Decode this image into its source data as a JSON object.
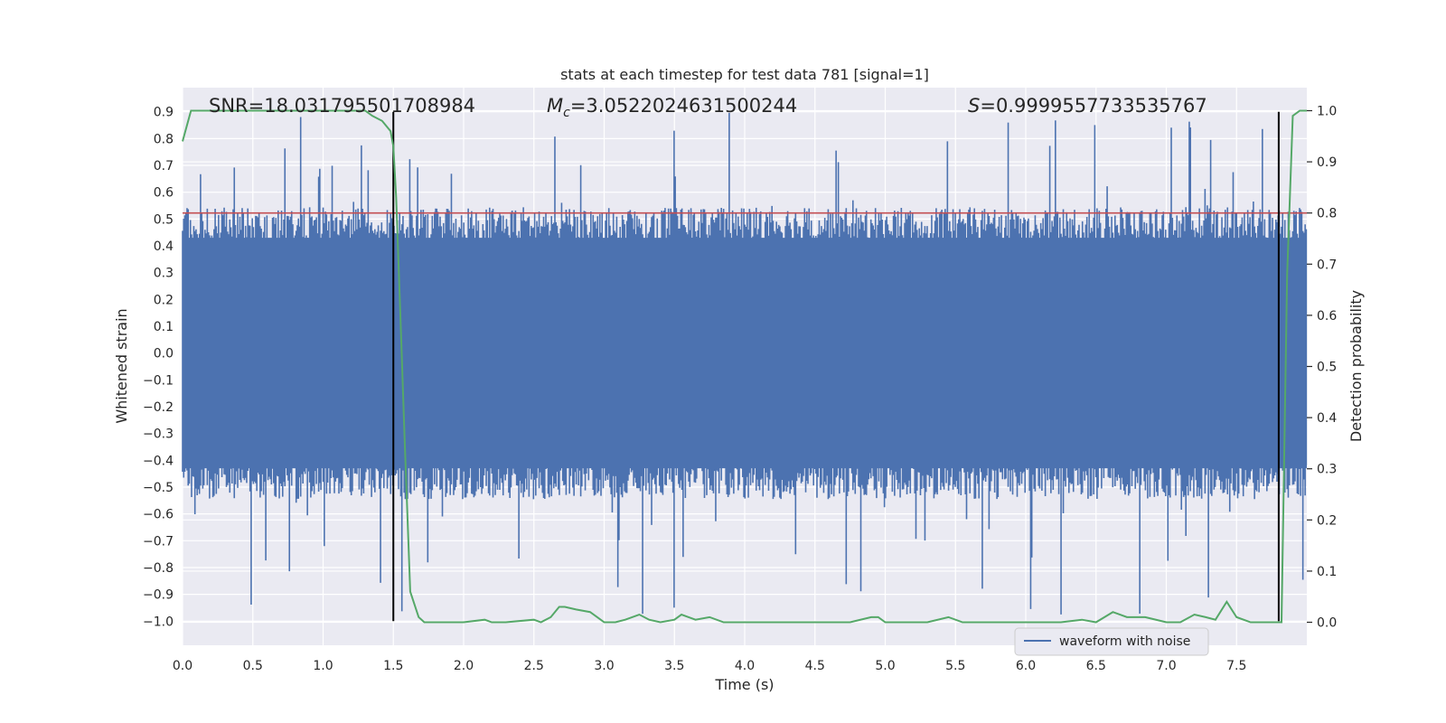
{
  "chart_data": {
    "type": "line",
    "title": "stats at each timestep for test data 781 [signal=1]",
    "xlabel": "Time (s)",
    "ylabel": "Whitened strain",
    "y2label": "Detection probability",
    "xlim": [
      0.0,
      8.0
    ],
    "ylim": [
      -1.09,
      0.99
    ],
    "y2lim": [
      -0.045,
      1.045
    ],
    "x_ticks": [
      0.0,
      0.5,
      1.0,
      1.5,
      2.0,
      2.5,
      3.0,
      3.5,
      4.0,
      4.5,
      5.0,
      5.5,
      6.0,
      6.5,
      7.0,
      7.5
    ],
    "x_tick_labels": [
      "0.0",
      "0.5",
      "1.0",
      "1.5",
      "2.0",
      "2.5",
      "3.0",
      "3.5",
      "4.0",
      "4.5",
      "5.0",
      "5.5",
      "6.0",
      "6.5",
      "7.0",
      "7.5"
    ],
    "y_ticks": [
      -1.0,
      -0.9,
      -0.8,
      -0.7,
      -0.6,
      -0.5,
      -0.4,
      -0.3,
      -0.2,
      -0.1,
      0.0,
      0.1,
      0.2,
      0.3,
      0.4,
      0.5,
      0.6,
      0.7,
      0.8,
      0.9
    ],
    "y_tick_labels": [
      "−1.0",
      "−0.9",
      "−0.8",
      "−0.7",
      "−0.6",
      "−0.5",
      "−0.4",
      "−0.3",
      "−0.2",
      "−0.1",
      "0.0",
      "0.1",
      "0.2",
      "0.3",
      "0.4",
      "0.5",
      "0.6",
      "0.7",
      "0.8",
      "0.9"
    ],
    "y2_ticks": [
      0.0,
      0.1,
      0.2,
      0.3,
      0.4,
      0.5,
      0.6,
      0.7,
      0.8,
      0.9,
      1.0
    ],
    "y2_tick_labels": [
      "0.0",
      "0.1",
      "0.2",
      "0.3",
      "0.4",
      "0.5",
      "0.6",
      "0.7",
      "0.8",
      "0.9",
      "1.0"
    ],
    "annotations": {
      "snr": "SNR=18.031795501708984",
      "mc_symbol": "M",
      "mc_subscript": "c",
      "mc_value": "=3.0522024631500244",
      "s_symbol": "S",
      "s_value": "=0.9999557733535767"
    },
    "threshold_probability": 0.8,
    "vertical_markers": [
      1.5,
      7.8
    ],
    "marker_y_range": [
      -1.0,
      0.9
    ],
    "waveform": {
      "name": "waveform with noise",
      "color": "#4c72b0",
      "n_samples": 1000,
      "seed": 781,
      "typical_envelope": [
        -0.43,
        0.43
      ],
      "extremes": [
        -1.0,
        0.9
      ]
    },
    "probability_series": {
      "color": "#55a868",
      "x": [
        0.0,
        0.06,
        0.15,
        0.3,
        0.5,
        0.7,
        0.9,
        1.1,
        1.25,
        1.3,
        1.35,
        1.42,
        1.48,
        1.5,
        1.52,
        1.55,
        1.58,
        1.62,
        1.68,
        1.72,
        1.8,
        2.0,
        2.15,
        2.2,
        2.3,
        2.5,
        2.55,
        2.62,
        2.68,
        2.72,
        2.8,
        2.9,
        2.95,
        3.0,
        3.08,
        3.15,
        3.25,
        3.32,
        3.4,
        3.5,
        3.55,
        3.65,
        3.75,
        3.85,
        4.0,
        4.2,
        4.5,
        4.75,
        4.9,
        4.95,
        5.0,
        5.1,
        5.3,
        5.45,
        5.55,
        5.8,
        6.0,
        6.25,
        6.4,
        6.5,
        6.62,
        6.72,
        6.85,
        7.0,
        7.1,
        7.2,
        7.28,
        7.35,
        7.43,
        7.5,
        7.6,
        7.75,
        7.82,
        7.86,
        7.9,
        7.95,
        8.0
      ],
      "y": [
        0.94,
        1.0,
        1.0,
        1.0,
        1.0,
        1.0,
        1.0,
        1.0,
        1.0,
        1.0,
        0.99,
        0.98,
        0.96,
        0.93,
        0.83,
        0.6,
        0.36,
        0.06,
        0.01,
        0.0,
        0.0,
        0.0,
        0.005,
        0.0,
        0.0,
        0.005,
        0.0,
        0.01,
        0.03,
        0.03,
        0.025,
        0.02,
        0.01,
        0.0,
        0.0,
        0.005,
        0.015,
        0.005,
        0.0,
        0.005,
        0.015,
        0.005,
        0.01,
        0.0,
        0.0,
        0.0,
        0.0,
        0.0,
        0.01,
        0.01,
        0.0,
        0.0,
        0.0,
        0.01,
        0.0,
        0.0,
        0.0,
        0.0,
        0.005,
        0.0,
        0.02,
        0.01,
        0.01,
        0.0,
        0.0,
        0.015,
        0.01,
        0.005,
        0.04,
        0.01,
        0.0,
        0.0,
        0.0,
        0.68,
        0.99,
        1.0,
        1.0
      ]
    },
    "legend": {
      "label": "waveform with noise",
      "loc": "lower-right"
    },
    "colors": {
      "axes_bg": "#eaeaf2",
      "grid": "#ffffff",
      "threshold": "#c44e52",
      "marker": "#000000",
      "text": "#262626"
    }
  }
}
